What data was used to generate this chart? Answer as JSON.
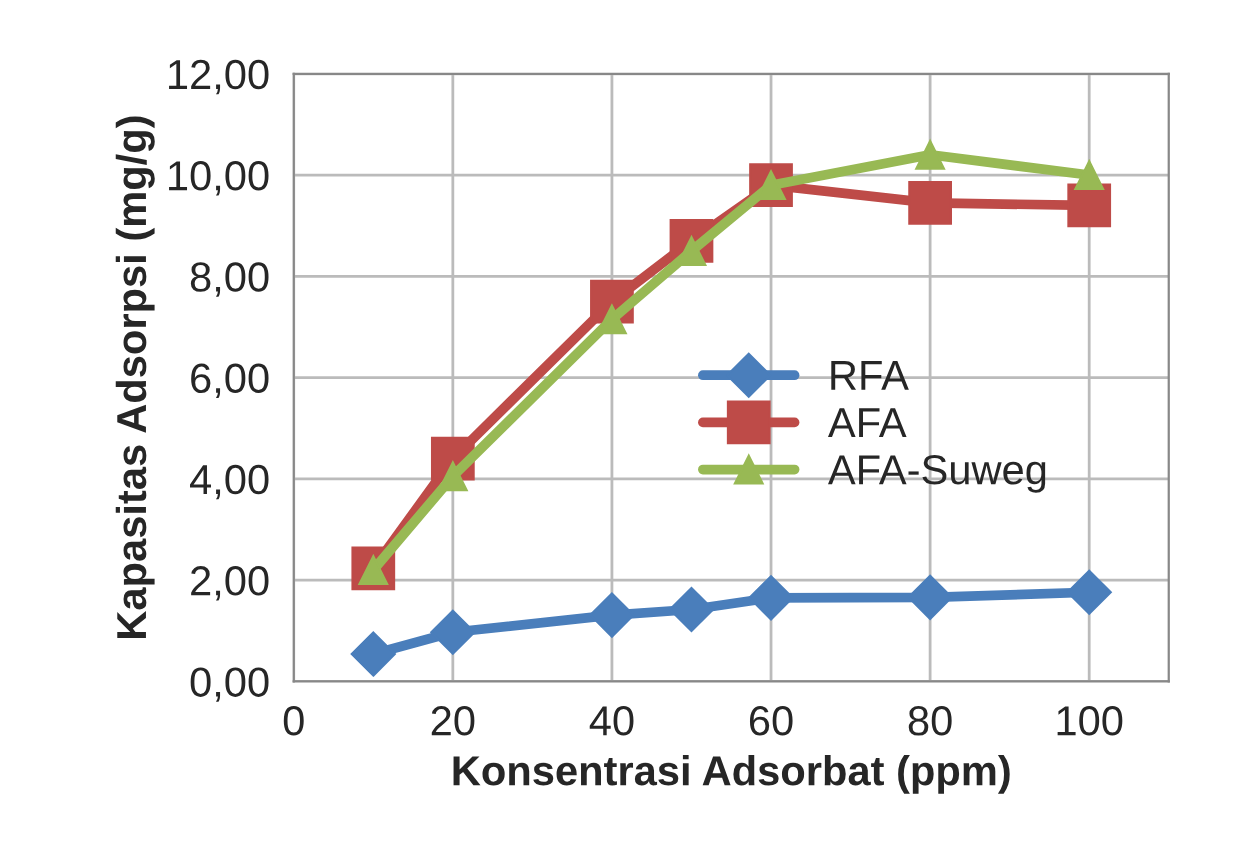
{
  "chart_data": {
    "type": "line",
    "xlabel": "Konsentrasi Adsorbat (ppm)",
    "ylabel": "Kapasitas Adsorpsi (mg/g)",
    "x": [
      10,
      20,
      40,
      50,
      60,
      80,
      100
    ],
    "series": [
      {
        "name": "RFA",
        "color": "#4a7ebb",
        "marker": "diamond",
        "values": [
          0.54,
          0.97,
          1.31,
          1.42,
          1.65,
          1.66,
          1.76
        ]
      },
      {
        "name": "AFA",
        "color": "#be4b48",
        "marker": "square",
        "values": [
          2.23,
          4.4,
          7.5,
          8.7,
          9.8,
          9.45,
          9.4
        ]
      },
      {
        "name": "AFA-Suweg",
        "color": "#98b954",
        "marker": "triangle",
        "values": [
          2.2,
          4.05,
          7.15,
          8.5,
          9.8,
          10.4,
          10.0
        ]
      }
    ],
    "xlim": [
      0,
      110
    ],
    "xticks": [
      0,
      20,
      40,
      60,
      80,
      100
    ],
    "ylim": [
      0,
      12
    ],
    "yticks": [
      {
        "value": 0,
        "label": "0,00"
      },
      {
        "value": 2,
        "label": "2,00"
      },
      {
        "value": 4,
        "label": "4,00"
      },
      {
        "value": 6,
        "label": "6,00"
      },
      {
        "value": 8,
        "label": "8,00"
      },
      {
        "value": 10,
        "label": "10,00"
      },
      {
        "value": 12,
        "label": "12,00"
      }
    ],
    "grid": true,
    "legend": "right",
    "line_style": "solid"
  }
}
